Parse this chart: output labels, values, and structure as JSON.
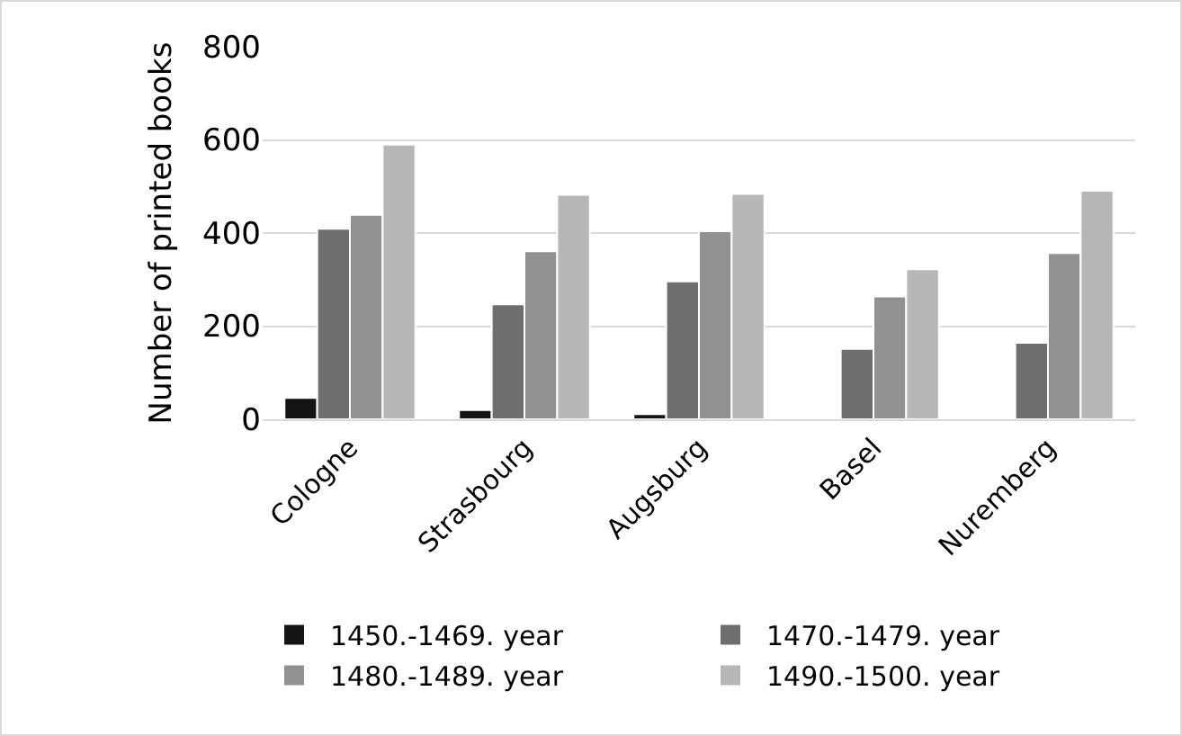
{
  "chart_data": {
    "type": "bar",
    "ylabel": "Number of printed books",
    "categories": [
      "Cologne",
      "Strasbourg",
      "Augsburg",
      "Basel",
      "Nuremberg"
    ],
    "series": [
      {
        "name": "1450.-1469. year",
        "color": "#141414",
        "values": [
          46,
          20,
          11,
          null,
          null
        ]
      },
      {
        "name": "1470.-1479. year",
        "color": "#6e6e6e",
        "values": [
          409,
          247,
          296,
          151,
          164
        ]
      },
      {
        "name": "1480.-1489. year",
        "color": "#919191",
        "values": [
          439,
          361,
          404,
          264,
          357
        ]
      },
      {
        "name": "1490.-1500. year",
        "color": "#b6b6b6",
        "values": [
          590,
          482,
          484,
          322,
          491
        ]
      }
    ],
    "ylim": [
      0,
      800
    ],
    "yticks": [
      0,
      200,
      400,
      600,
      800
    ],
    "grid": "y",
    "legend": "bottom"
  }
}
